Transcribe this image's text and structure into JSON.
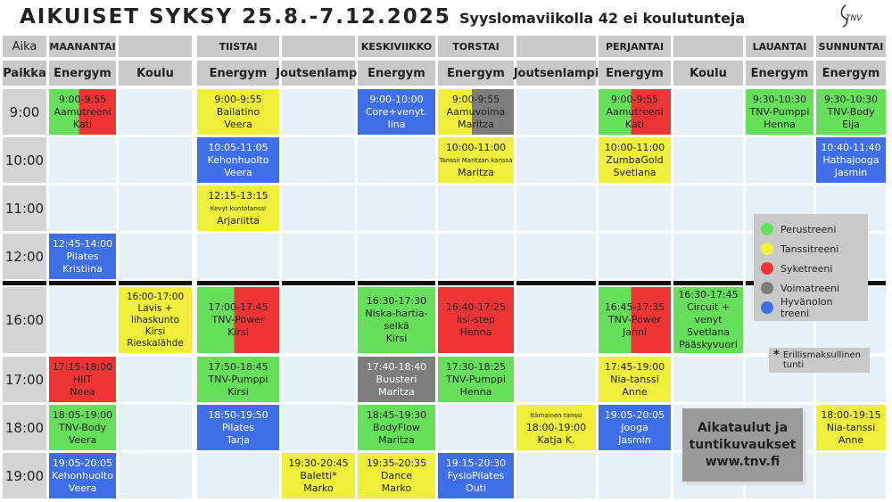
{
  "header": {
    "title": "AIKUISET SYKSY 25.8.-7.12.2025",
    "subtitle": "Syyslomaviikolla 42 ei koulutunteja",
    "logo": "TNV"
  },
  "legend": [
    {
      "name": "Perustreeni",
      "color": "#66e05a"
    },
    {
      "name": "Tanssitreeni",
      "color": "#f0ef3c"
    },
    {
      "name": "Syketreeni",
      "color": "#ee3535"
    },
    {
      "name": "Voimatreeni",
      "color": "#7d7d7d"
    },
    {
      "name": "Hyvänolon treeni",
      "color": "#3f6fe8"
    }
  ],
  "note": {
    "mark": "*",
    "text": "Erillismaksullinen tunti"
  },
  "info": [
    "Aikataulut ja",
    "tuntikuvaukset",
    "www.tnv.fi"
  ],
  "table": {
    "time_label": "Aika",
    "place_label": "Paikka",
    "columns": [
      {
        "day": "MAANANTAI",
        "place": "Energym"
      },
      {
        "day": null,
        "place": "Koulu"
      },
      {
        "day": "TIISTAI",
        "place": "Energym"
      },
      {
        "day": null,
        "place": "Joutsenlampi"
      },
      {
        "day": "KESKIVIIKKO",
        "place": "Energym"
      },
      {
        "day": "TORSTAI",
        "place": "Energym"
      },
      {
        "day": null,
        "place": "Joutsenlampi"
      },
      {
        "day": "PERJANTAI",
        "place": "Energym"
      },
      {
        "day": null,
        "place": "Koulu"
      },
      {
        "day": "LAUANTAI",
        "place": "Energym"
      },
      {
        "day": "SUNNUNTAI",
        "place": "Energym"
      }
    ],
    "rows": [
      {
        "time": "9:00",
        "cells": [
          {
            "lines": [
              "9:00-9:55",
              "Aamutreeni",
              "Kati"
            ],
            "kinds": [
              "Perustreeni",
              "Syketreeni"
            ]
          },
          null,
          {
            "lines": [
              "9:00-9:55",
              "Bailatino",
              "Veera"
            ],
            "kinds": [
              "Tanssitreeni"
            ]
          },
          null,
          {
            "lines": [
              "9:00-10:00",
              "Core+venyt.",
              "Iina"
            ],
            "kinds": [
              "Hyvänolon treeni"
            ]
          },
          {
            "lines": [
              "9:00-9:55",
              "Aamuvoima",
              "Maritza"
            ],
            "kinds": [
              "Tanssitreeni",
              "Voimatreeni"
            ]
          },
          null,
          {
            "lines": [
              "9:00-9:55",
              "Aamutreeni",
              "Kati"
            ],
            "kinds": [
              "Perustreeni",
              "Syketreeni"
            ]
          },
          null,
          {
            "lines": [
              "9:30-10:30",
              "TNV-Pumppi",
              "Henna"
            ],
            "kinds": [
              "Perustreeni"
            ]
          },
          {
            "lines": [
              "9:30-10:30",
              "TNV-Body",
              "Eija"
            ],
            "kinds": [
              "Perustreeni"
            ]
          }
        ]
      },
      {
        "time": "10:00",
        "cells": [
          null,
          null,
          {
            "lines": [
              "10:05-11:05",
              "Kehonhuolto",
              "Veera"
            ],
            "kinds": [
              "Hyvänolon treeni"
            ]
          },
          null,
          null,
          {
            "lines": [
              "10:00-11:00",
              "Tanssii Maritzan kanssa",
              "Maritza"
            ],
            "kinds": [
              "Tanssitreeni"
            ]
          },
          null,
          {
            "lines": [
              "10:00-11:00",
              "ZumbaGold",
              "Svetlana"
            ],
            "kinds": [
              "Tanssitreeni"
            ]
          },
          null,
          null,
          {
            "lines": [
              "10:40-11:40",
              "Hathajooga",
              "Jasmin"
            ],
            "kinds": [
              "Hyvänolon treeni"
            ]
          }
        ]
      },
      {
        "time": "11:00",
        "cells": [
          null,
          null,
          {
            "lines": [
              "12:15-13:15",
              "Kevyt kuntotanssi",
              "Arjariitta"
            ],
            "kinds": [
              "Tanssitreeni"
            ]
          },
          null,
          null,
          null,
          null,
          null,
          null,
          null,
          null
        ]
      },
      {
        "time": "12:00",
        "cells": [
          {
            "lines": [
              "12:45-14:00",
              "Pilates",
              "Kristiina"
            ],
            "kinds": [
              "Hyvänolon treeni"
            ]
          },
          null,
          null,
          null,
          null,
          null,
          null,
          null,
          null,
          null,
          null
        ]
      },
      {
        "time": "16:00",
        "cells": [
          null,
          {
            "lines": [
              "16:00-17:00",
              "Lavis +",
              "lihaskunto",
              "Kirsi",
              "Rieskalähde"
            ],
            "kinds": [
              "Tanssitreeni"
            ]
          },
          {
            "lines": [
              "17:00-17:45",
              "TNV-Power",
              "Kirsi"
            ],
            "kinds": [
              "Perustreeni",
              "Syketreeni"
            ]
          },
          null,
          {
            "lines": [
              "16:30-17:30",
              "Niska-hartia-",
              "selkä",
              "Kirsi"
            ],
            "kinds": [
              "Perustreeni"
            ]
          },
          {
            "lines": [
              "16:40-17:25",
              "Iisi-step",
              "Henna"
            ],
            "kinds": [
              "Syketreeni"
            ]
          },
          null,
          {
            "lines": [
              "16:45-17:35",
              "TNV-Power",
              "Janni"
            ],
            "kinds": [
              "Perustreeni",
              "Syketreeni"
            ]
          },
          {
            "lines": [
              "16:30-17:45",
              "Circuit + venyt",
              "Svetlana",
              "Pääskyvuori"
            ],
            "kinds": [
              "Perustreeni"
            ]
          },
          null,
          null
        ]
      },
      {
        "time": "17:00",
        "cells": [
          {
            "lines": [
              "17:15-18:00",
              "HIIT",
              "Neea"
            ],
            "kinds": [
              "Syketreeni"
            ]
          },
          null,
          {
            "lines": [
              "17:50-18:45",
              "TNV-Pumppi",
              "Kirsi"
            ],
            "kinds": [
              "Perustreeni"
            ]
          },
          null,
          {
            "lines": [
              "17:40-18:40",
              "Buusteri",
              "Maritza"
            ],
            "kinds": [
              "Voimatreeni"
            ]
          },
          {
            "lines": [
              "17:30-18:25",
              "TNV-Pumppi",
              "Henna"
            ],
            "kinds": [
              "Perustreeni"
            ]
          },
          null,
          {
            "lines": [
              "17:45-19:00",
              "Nia-tanssi",
              "Anne"
            ],
            "kinds": [
              "Tanssitreeni"
            ]
          },
          null,
          null,
          null
        ]
      },
      {
        "time": "18:00",
        "cells": [
          {
            "lines": [
              "18:05-19:00",
              "TNV-Body",
              "Veera"
            ],
            "kinds": [
              "Perustreeni"
            ]
          },
          null,
          {
            "lines": [
              "18:50-19:50",
              "Pilates",
              "Tarja"
            ],
            "kinds": [
              "Hyvänolon treeni"
            ]
          },
          null,
          {
            "lines": [
              "18:45-19:30",
              "BodyFlow",
              "Maritza"
            ],
            "kinds": [
              "Perustreeni"
            ]
          },
          null,
          {
            "lines": [
              "Itämainen tanssi",
              "18:00-19:00",
              "Katja K."
            ],
            "kinds": [
              "Tanssitreeni"
            ]
          },
          {
            "lines": [
              "19:05-20:05",
              "Jooga",
              "Jasmin"
            ],
            "kinds": [
              "Hyvänolon treeni"
            ]
          },
          null,
          null,
          {
            "lines": [
              "18:00-19:15",
              "Nia-tanssi",
              "Anne"
            ],
            "kinds": [
              "Tanssitreeni"
            ]
          }
        ]
      },
      {
        "time": "19:00",
        "cells": [
          {
            "lines": [
              "19:05-20:05",
              "Kehonhuolto",
              "Veera"
            ],
            "kinds": [
              "Hyvänolon treeni"
            ]
          },
          null,
          null,
          {
            "lines": [
              "19:30-20:45",
              "Baletti*",
              "Marko"
            ],
            "kinds": [
              "Tanssitreeni"
            ]
          },
          {
            "lines": [
              "19:35-20:35",
              "Dance",
              "Marko"
            ],
            "kinds": [
              "Tanssitreeni"
            ]
          },
          {
            "lines": [
              "19:15-20:30",
              "FysioPilates",
              "Outi"
            ],
            "kinds": [
              "Hyvänolon treeni"
            ]
          },
          null,
          null,
          null,
          null,
          null
        ]
      }
    ]
  }
}
